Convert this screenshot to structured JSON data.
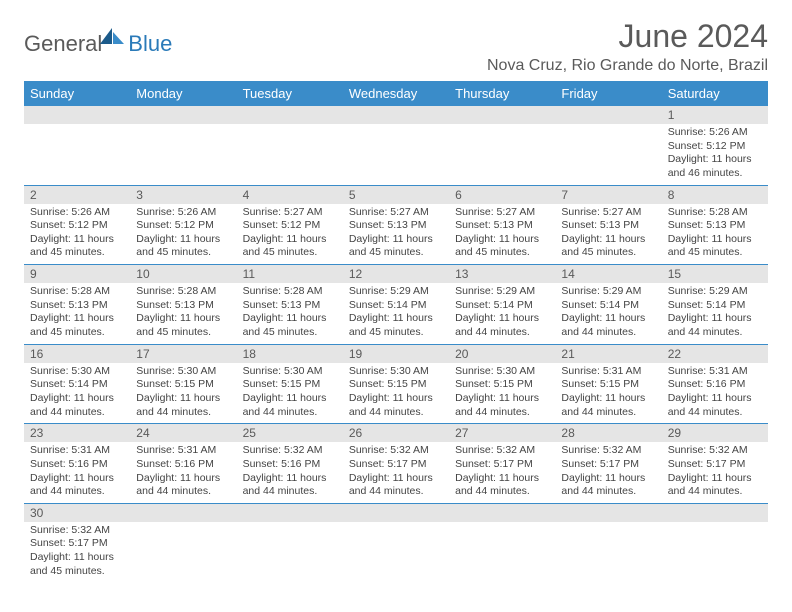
{
  "logo": {
    "text1": "General",
    "text2": "Blue"
  },
  "title": "June 2024",
  "location": "Nova Cruz, Rio Grande do Norte, Brazil",
  "colors": {
    "header_bg": "#3a8cc9",
    "header_text": "#ffffff",
    "daynum_bg": "#e5e5e5",
    "text": "#5a5a5a",
    "logo_blue": "#2a7ab8",
    "row_border": "#3a8cc9"
  },
  "weekdays": [
    "Sunday",
    "Monday",
    "Tuesday",
    "Wednesday",
    "Thursday",
    "Friday",
    "Saturday"
  ],
  "weeks": [
    [
      null,
      null,
      null,
      null,
      null,
      null,
      {
        "n": "1",
        "sr": "Sunrise: 5:26 AM",
        "ss": "Sunset: 5:12 PM",
        "dl": "Daylight: 11 hours and 46 minutes."
      }
    ],
    [
      {
        "n": "2",
        "sr": "Sunrise: 5:26 AM",
        "ss": "Sunset: 5:12 PM",
        "dl": "Daylight: 11 hours and 45 minutes."
      },
      {
        "n": "3",
        "sr": "Sunrise: 5:26 AM",
        "ss": "Sunset: 5:12 PM",
        "dl": "Daylight: 11 hours and 45 minutes."
      },
      {
        "n": "4",
        "sr": "Sunrise: 5:27 AM",
        "ss": "Sunset: 5:12 PM",
        "dl": "Daylight: 11 hours and 45 minutes."
      },
      {
        "n": "5",
        "sr": "Sunrise: 5:27 AM",
        "ss": "Sunset: 5:13 PM",
        "dl": "Daylight: 11 hours and 45 minutes."
      },
      {
        "n": "6",
        "sr": "Sunrise: 5:27 AM",
        "ss": "Sunset: 5:13 PM",
        "dl": "Daylight: 11 hours and 45 minutes."
      },
      {
        "n": "7",
        "sr": "Sunrise: 5:27 AM",
        "ss": "Sunset: 5:13 PM",
        "dl": "Daylight: 11 hours and 45 minutes."
      },
      {
        "n": "8",
        "sr": "Sunrise: 5:28 AM",
        "ss": "Sunset: 5:13 PM",
        "dl": "Daylight: 11 hours and 45 minutes."
      }
    ],
    [
      {
        "n": "9",
        "sr": "Sunrise: 5:28 AM",
        "ss": "Sunset: 5:13 PM",
        "dl": "Daylight: 11 hours and 45 minutes."
      },
      {
        "n": "10",
        "sr": "Sunrise: 5:28 AM",
        "ss": "Sunset: 5:13 PM",
        "dl": "Daylight: 11 hours and 45 minutes."
      },
      {
        "n": "11",
        "sr": "Sunrise: 5:28 AM",
        "ss": "Sunset: 5:13 PM",
        "dl": "Daylight: 11 hours and 45 minutes."
      },
      {
        "n": "12",
        "sr": "Sunrise: 5:29 AM",
        "ss": "Sunset: 5:14 PM",
        "dl": "Daylight: 11 hours and 45 minutes."
      },
      {
        "n": "13",
        "sr": "Sunrise: 5:29 AM",
        "ss": "Sunset: 5:14 PM",
        "dl": "Daylight: 11 hours and 44 minutes."
      },
      {
        "n": "14",
        "sr": "Sunrise: 5:29 AM",
        "ss": "Sunset: 5:14 PM",
        "dl": "Daylight: 11 hours and 44 minutes."
      },
      {
        "n": "15",
        "sr": "Sunrise: 5:29 AM",
        "ss": "Sunset: 5:14 PM",
        "dl": "Daylight: 11 hours and 44 minutes."
      }
    ],
    [
      {
        "n": "16",
        "sr": "Sunrise: 5:30 AM",
        "ss": "Sunset: 5:14 PM",
        "dl": "Daylight: 11 hours and 44 minutes."
      },
      {
        "n": "17",
        "sr": "Sunrise: 5:30 AM",
        "ss": "Sunset: 5:15 PM",
        "dl": "Daylight: 11 hours and 44 minutes."
      },
      {
        "n": "18",
        "sr": "Sunrise: 5:30 AM",
        "ss": "Sunset: 5:15 PM",
        "dl": "Daylight: 11 hours and 44 minutes."
      },
      {
        "n": "19",
        "sr": "Sunrise: 5:30 AM",
        "ss": "Sunset: 5:15 PM",
        "dl": "Daylight: 11 hours and 44 minutes."
      },
      {
        "n": "20",
        "sr": "Sunrise: 5:30 AM",
        "ss": "Sunset: 5:15 PM",
        "dl": "Daylight: 11 hours and 44 minutes."
      },
      {
        "n": "21",
        "sr": "Sunrise: 5:31 AM",
        "ss": "Sunset: 5:15 PM",
        "dl": "Daylight: 11 hours and 44 minutes."
      },
      {
        "n": "22",
        "sr": "Sunrise: 5:31 AM",
        "ss": "Sunset: 5:16 PM",
        "dl": "Daylight: 11 hours and 44 minutes."
      }
    ],
    [
      {
        "n": "23",
        "sr": "Sunrise: 5:31 AM",
        "ss": "Sunset: 5:16 PM",
        "dl": "Daylight: 11 hours and 44 minutes."
      },
      {
        "n": "24",
        "sr": "Sunrise: 5:31 AM",
        "ss": "Sunset: 5:16 PM",
        "dl": "Daylight: 11 hours and 44 minutes."
      },
      {
        "n": "25",
        "sr": "Sunrise: 5:32 AM",
        "ss": "Sunset: 5:16 PM",
        "dl": "Daylight: 11 hours and 44 minutes."
      },
      {
        "n": "26",
        "sr": "Sunrise: 5:32 AM",
        "ss": "Sunset: 5:17 PM",
        "dl": "Daylight: 11 hours and 44 minutes."
      },
      {
        "n": "27",
        "sr": "Sunrise: 5:32 AM",
        "ss": "Sunset: 5:17 PM",
        "dl": "Daylight: 11 hours and 44 minutes."
      },
      {
        "n": "28",
        "sr": "Sunrise: 5:32 AM",
        "ss": "Sunset: 5:17 PM",
        "dl": "Daylight: 11 hours and 44 minutes."
      },
      {
        "n": "29",
        "sr": "Sunrise: 5:32 AM",
        "ss": "Sunset: 5:17 PM",
        "dl": "Daylight: 11 hours and 44 minutes."
      }
    ],
    [
      {
        "n": "30",
        "sr": "Sunrise: 5:32 AM",
        "ss": "Sunset: 5:17 PM",
        "dl": "Daylight: 11 hours and 45 minutes."
      },
      null,
      null,
      null,
      null,
      null,
      null
    ]
  ]
}
